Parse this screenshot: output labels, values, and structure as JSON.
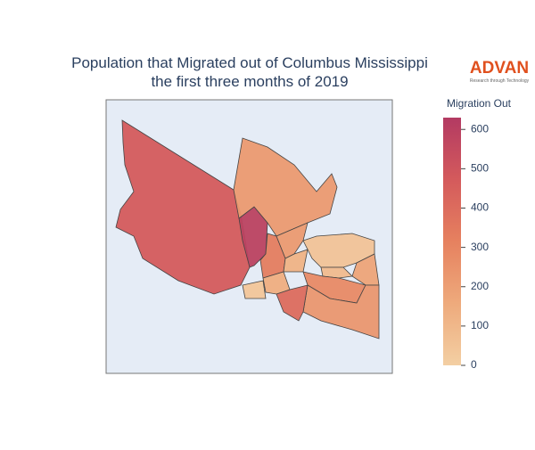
{
  "chart_data": {
    "type": "choropleth",
    "title_lines": [
      "Population that Migrated out of Columbus Mississippi",
      "the first three months of 2019"
    ],
    "logo": "ADVAN",
    "logo_tagline": "Research through Technology",
    "colorbar_title": "Migration Out",
    "clim": [
      0,
      630
    ],
    "cticks": [
      0,
      100,
      200,
      300,
      400,
      500,
      600
    ],
    "colorscale": [
      [
        0,
        "#f3cfa3"
      ],
      [
        0.25,
        "#eeaa7c"
      ],
      [
        0.5,
        "#e6815f"
      ],
      [
        0.75,
        "#d45a5c"
      ],
      [
        1,
        "#b33a62"
      ]
    ],
    "values": [
      470,
      590,
      220,
      330,
      50,
      220,
      120,
      180,
      90,
      280,
      230,
      400,
      40,
      140
    ]
  }
}
